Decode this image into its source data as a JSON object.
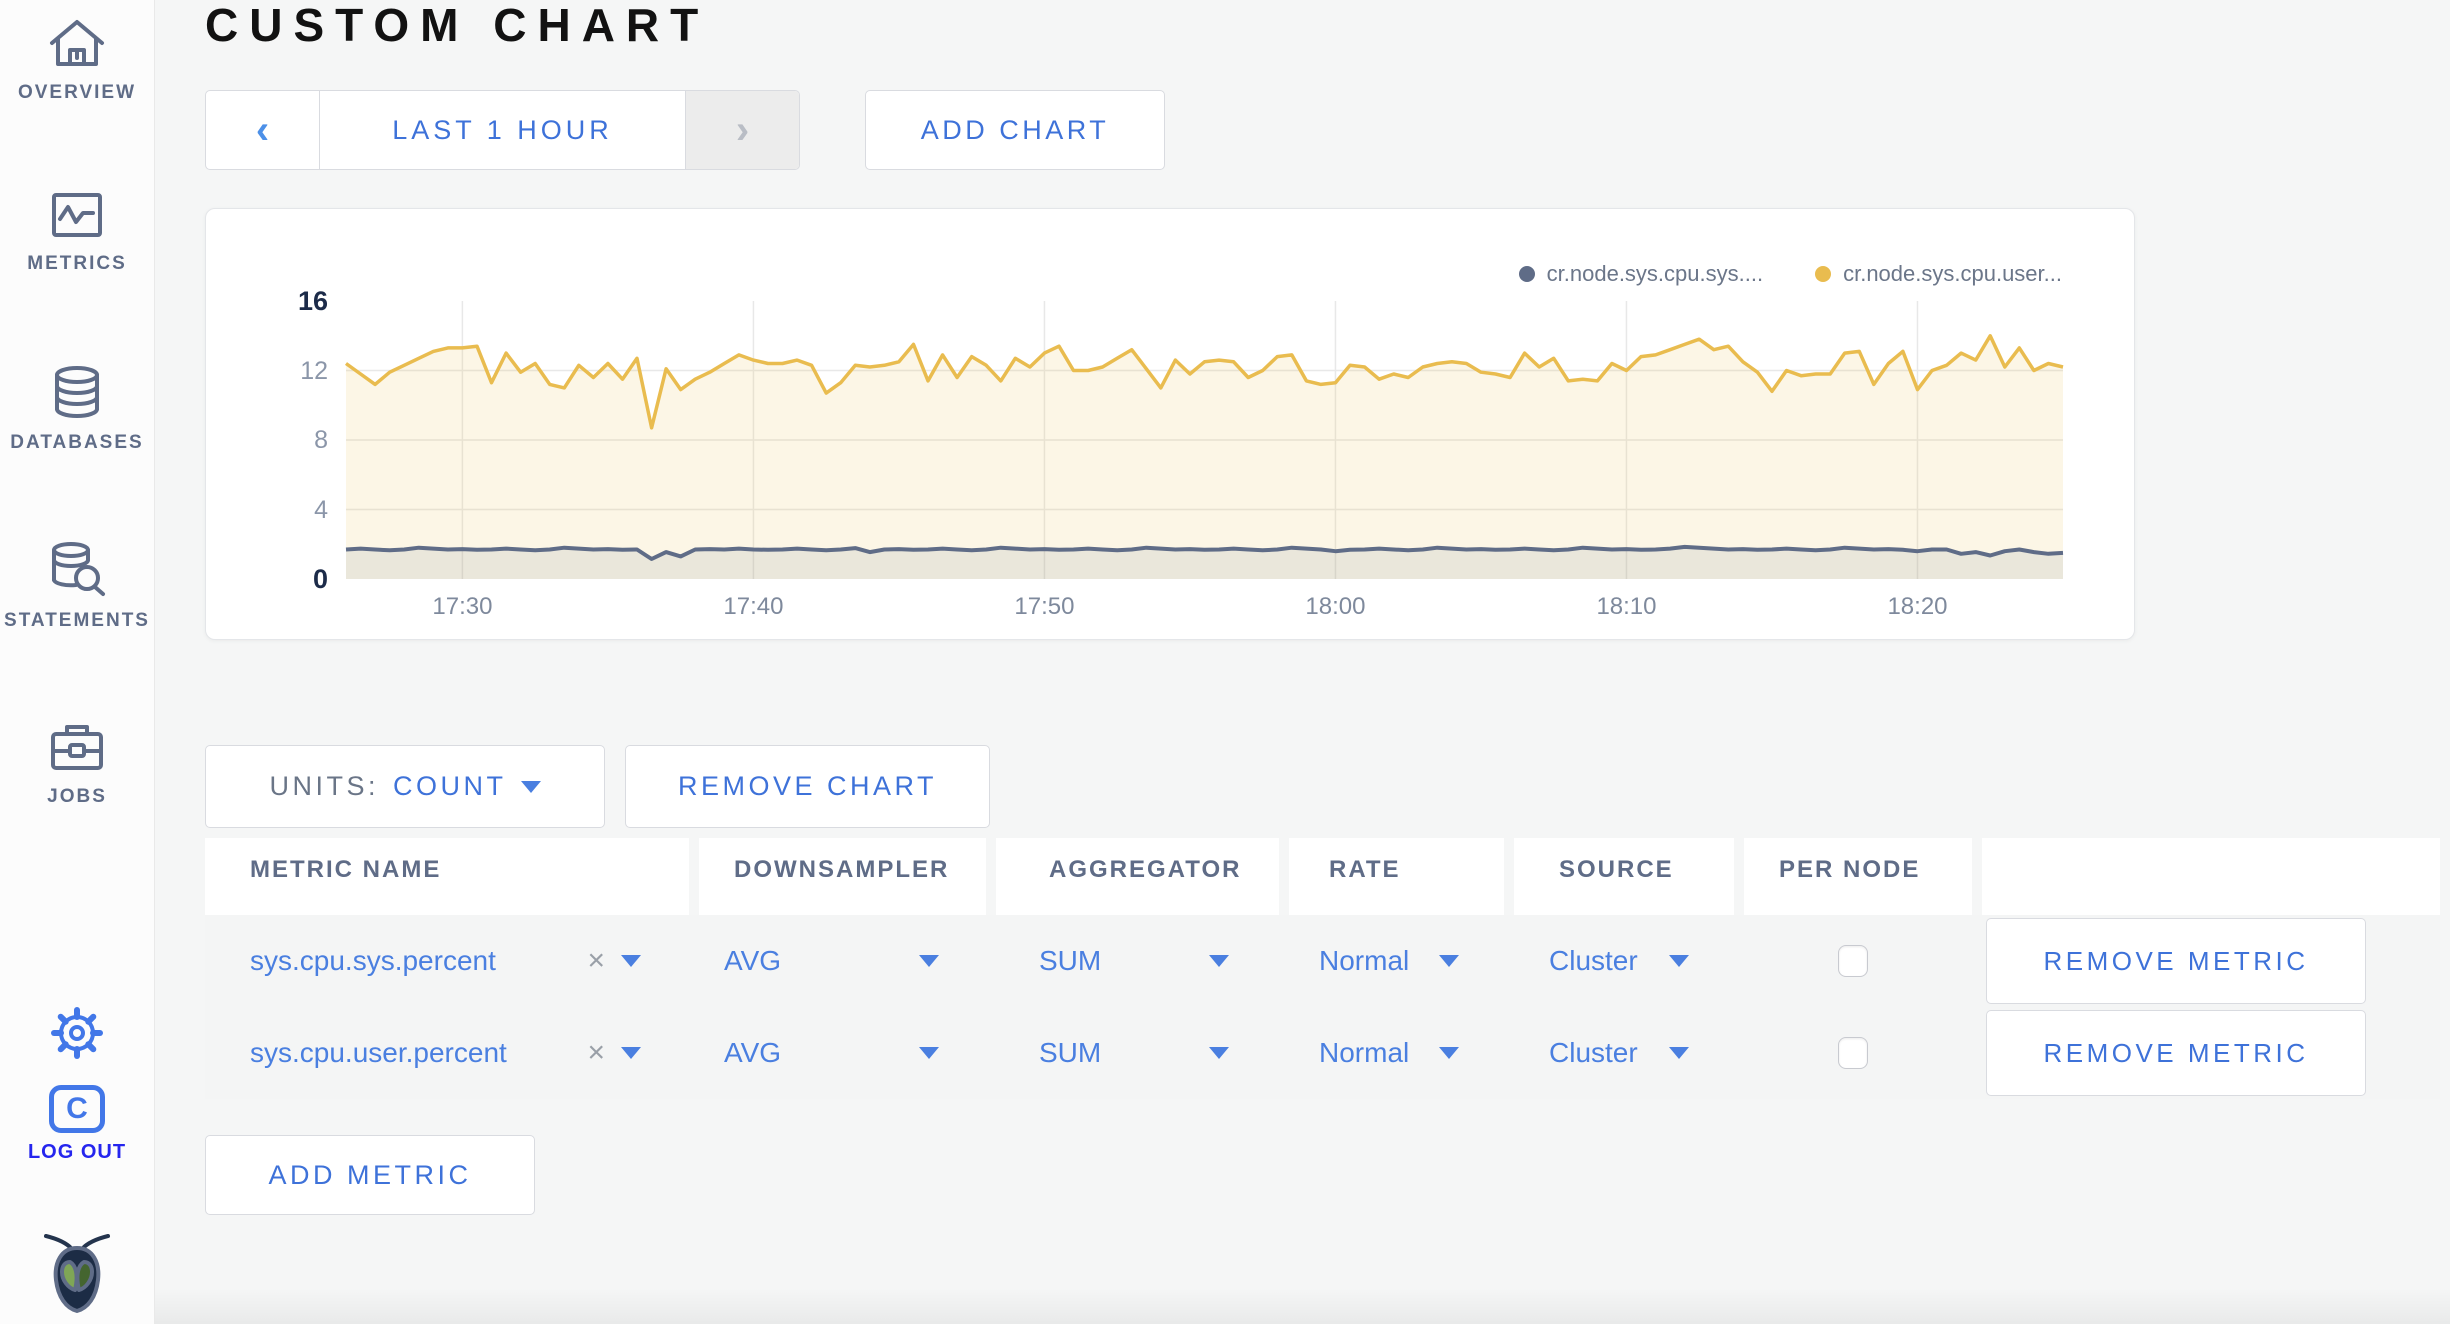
{
  "page": {
    "title": "CUSTOM CHART"
  },
  "colors": {
    "accent_blue": "#3E72D9",
    "link_blue": "#4A7FE0",
    "logout_blue": "#2525EE",
    "slate": "#5F6C87",
    "series_sys": "#5F6C87",
    "series_user": "#E9BC4F"
  },
  "sidebar": {
    "items": [
      {
        "label": "OVERVIEW",
        "icon": "home-icon"
      },
      {
        "label": "METRICS",
        "icon": "metrics-icon"
      },
      {
        "label": "DATABASES",
        "icon": "database-icon"
      },
      {
        "label": "STATEMENTS",
        "icon": "statements-icon"
      },
      {
        "label": "JOBS",
        "icon": "briefcase-icon"
      }
    ],
    "settings_icon": "gear-icon",
    "logout": {
      "label": "LOG OUT",
      "icon_letter": "C"
    }
  },
  "toolbar": {
    "prev_chevron": "‹",
    "time_range_label": "LAST 1 HOUR",
    "next_chevron": "›",
    "add_chart_label": "ADD CHART"
  },
  "chart_controls": {
    "units_label": "UNITS:",
    "units_value": "COUNT",
    "remove_chart_label": "REMOVE CHART",
    "add_metric_label": "ADD METRIC"
  },
  "table": {
    "headers": [
      "METRIC NAME",
      "DOWNSAMPLER",
      "AGGREGATOR",
      "RATE",
      "SOURCE",
      "PER NODE",
      ""
    ],
    "remove_metric_label": "REMOVE METRIC",
    "rows": [
      {
        "metric_name": "sys.cpu.sys.percent",
        "clear": "×",
        "downsampler": "AVG",
        "aggregator": "SUM",
        "rate": "Normal",
        "source": "Cluster",
        "per_node": false
      },
      {
        "metric_name": "sys.cpu.user.percent",
        "clear": "×",
        "downsampler": "AVG",
        "aggregator": "SUM",
        "rate": "Normal",
        "source": "Cluster",
        "per_node": false
      }
    ]
  },
  "chart_data": {
    "type": "line",
    "title": "",
    "grid": true,
    "legend_position": "top-right",
    "x_axis": {
      "start": "17:26",
      "end": "18:25",
      "total_minutes": 59,
      "ticks": [
        "17:30",
        "17:40",
        "17:50",
        "18:00",
        "18:10",
        "18:20"
      ],
      "tick_minutes": [
        4,
        14,
        24,
        34,
        44,
        54
      ]
    },
    "y_axis": {
      "range": [
        0,
        16
      ],
      "ticks": [
        0,
        4,
        8,
        12,
        16
      ]
    },
    "sample_interval_seconds": 30,
    "series": [
      {
        "name": "cr.node.sys.cpu.sys....",
        "color": "#5F6C87",
        "fill": "rgba(95,108,135,0.11)",
        "line_width": 4,
        "values": [
          1.7,
          1.75,
          1.7,
          1.65,
          1.7,
          1.8,
          1.75,
          1.7,
          1.72,
          1.68,
          1.7,
          1.75,
          1.7,
          1.65,
          1.7,
          1.8,
          1.75,
          1.7,
          1.72,
          1.68,
          1.7,
          1.15,
          1.55,
          1.3,
          1.7,
          1.72,
          1.7,
          1.75,
          1.7,
          1.68,
          1.7,
          1.75,
          1.7,
          1.65,
          1.7,
          1.78,
          1.55,
          1.7,
          1.72,
          1.68,
          1.7,
          1.75,
          1.7,
          1.65,
          1.7,
          1.8,
          1.75,
          1.7,
          1.72,
          1.68,
          1.7,
          1.75,
          1.7,
          1.65,
          1.7,
          1.8,
          1.75,
          1.7,
          1.72,
          1.68,
          1.7,
          1.75,
          1.7,
          1.65,
          1.7,
          1.8,
          1.75,
          1.7,
          1.6,
          1.68,
          1.7,
          1.75,
          1.7,
          1.65,
          1.7,
          1.8,
          1.75,
          1.7,
          1.72,
          1.68,
          1.7,
          1.75,
          1.7,
          1.65,
          1.7,
          1.8,
          1.75,
          1.7,
          1.72,
          1.68,
          1.7,
          1.75,
          1.85,
          1.8,
          1.75,
          1.7,
          1.72,
          1.68,
          1.7,
          1.75,
          1.7,
          1.65,
          1.7,
          1.8,
          1.75,
          1.7,
          1.72,
          1.68,
          1.6,
          1.7,
          1.7,
          1.45,
          1.55,
          1.35,
          1.6,
          1.7,
          1.55,
          1.45,
          1.5
        ]
      },
      {
        "name": "cr.node.sys.cpu.user...",
        "color": "#E9BC4F",
        "fill": "rgba(233,188,79,0.14)",
        "line_width": 3.5,
        "values": [
          12.4,
          11.8,
          11.2,
          11.9,
          12.3,
          12.7,
          13.1,
          13.3,
          13.3,
          13.4,
          11.3,
          13.0,
          11.9,
          12.4,
          11.2,
          11.0,
          12.3,
          11.6,
          12.4,
          11.5,
          12.7,
          8.7,
          12.1,
          10.9,
          11.5,
          11.9,
          12.4,
          12.9,
          12.6,
          12.4,
          12.4,
          12.6,
          12.3,
          10.7,
          11.3,
          12.3,
          12.2,
          12.3,
          12.5,
          13.5,
          11.4,
          12.9,
          11.6,
          12.8,
          12.3,
          11.4,
          12.7,
          12.2,
          13.0,
          13.4,
          12.0,
          12.0,
          12.2,
          12.7,
          13.2,
          12.1,
          11.0,
          12.6,
          11.8,
          12.5,
          12.6,
          12.5,
          11.6,
          12.0,
          12.8,
          12.9,
          11.4,
          11.2,
          11.3,
          12.3,
          12.2,
          11.5,
          11.8,
          11.6,
          12.2,
          12.4,
          12.5,
          12.4,
          11.9,
          11.8,
          11.6,
          13.0,
          12.2,
          12.7,
          11.4,
          11.5,
          11.4,
          12.4,
          12.0,
          12.8,
          12.9,
          13.2,
          13.5,
          13.8,
          13.2,
          13.4,
          12.5,
          11.9,
          10.8,
          12.0,
          11.7,
          11.8,
          11.8,
          13.0,
          13.1,
          11.2,
          12.4,
          13.1,
          10.9,
          12.0,
          12.3,
          13.0,
          12.6,
          14.0,
          12.2,
          13.3,
          12.0,
          12.4,
          12.2
        ]
      }
    ]
  }
}
